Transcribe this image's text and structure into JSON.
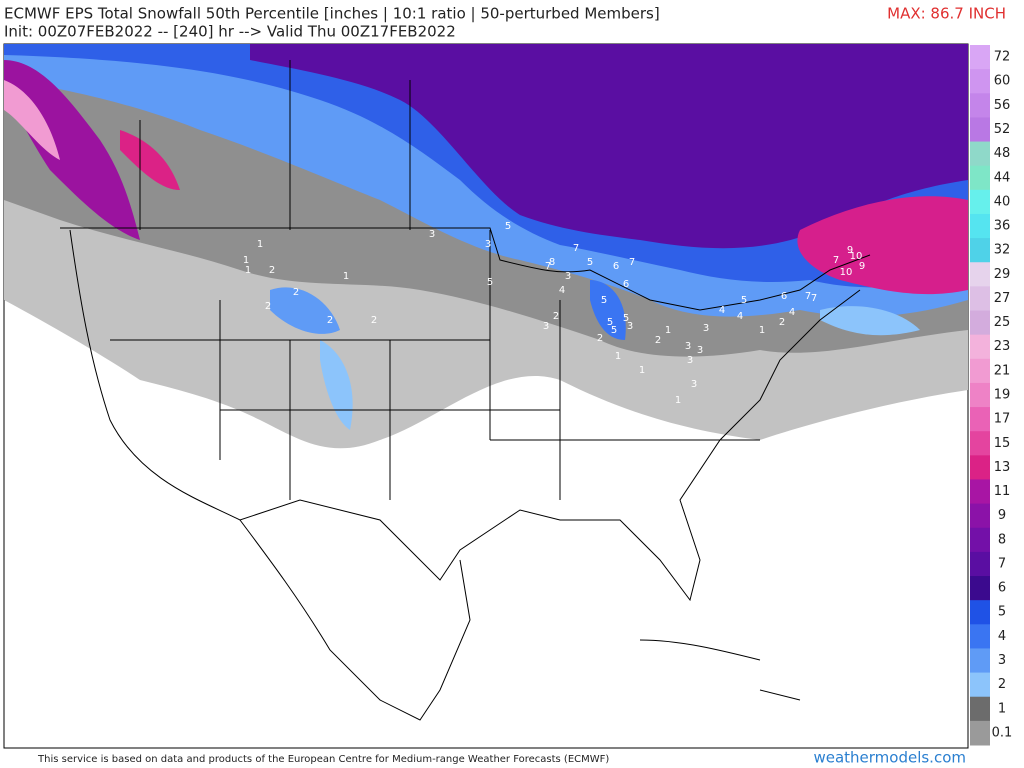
{
  "header": {
    "title": "ECMWF EPS Total Snowfall 50th Percentile [inches | 10:1 ratio | 50-perturbed Members]",
    "subtitle": "Init: 00Z07FEB2022 -- [240] hr --> Valid Thu 00Z17FEB2022",
    "max_label": "MAX: 86.7 INCH"
  },
  "colorbar": {
    "levels": [
      72,
      60,
      56,
      52,
      48,
      44,
      40,
      36,
      32,
      29,
      27,
      25,
      23,
      21,
      19,
      17,
      15,
      13,
      11,
      9,
      8,
      7,
      6,
      5,
      4,
      3,
      2,
      1,
      0.1
    ],
    "colors": [
      "#d9a6f5",
      "#cf95f0",
      "#c485ea",
      "#b978e4",
      "#8fd9c9",
      "#7ee6c7",
      "#66f0ec",
      "#55e4f0",
      "#4fd2e8",
      "#e6d3ec",
      "#ddbfe5",
      "#d3acdd",
      "#f3b2dc",
      "#f19bd2",
      "#ee82c6",
      "#ea62b6",
      "#e4449f",
      "#db2286",
      "#a815a4",
      "#8b12a8",
      "#7310a8",
      "#5a0ea2",
      "#3b0a8e",
      "#1f52e6",
      "#3a75f2",
      "#5f9bf6",
      "#8cc4fb",
      "#6c6c6c",
      "#9a9a9a"
    ]
  },
  "map_labels": [
    1,
    2,
    1,
    1,
    2,
    2,
    2,
    1,
    2,
    3,
    3,
    5,
    5,
    7,
    8,
    5,
    7,
    6,
    6,
    7,
    5,
    5,
    5,
    5,
    3,
    3,
    4,
    3,
    2,
    2,
    1,
    1,
    1,
    3,
    3,
    4,
    5,
    4,
    3,
    6,
    7,
    9,
    10,
    10,
    9,
    7,
    7,
    4,
    2,
    1,
    2,
    1,
    3,
    3
  ],
  "footer": {
    "notice": "This service is based on data and products of the European Centre for Medium-range Weather Forecasts (ECMWF)",
    "brand": "weathermodels.com"
  }
}
